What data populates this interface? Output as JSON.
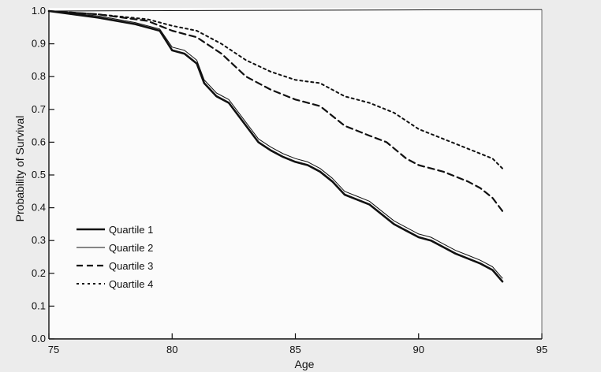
{
  "chart_data": {
    "type": "line",
    "xlabel": "Age",
    "ylabel": "Probability of Survival",
    "xlim": [
      75,
      95
    ],
    "ylim": [
      0.0,
      1.0
    ],
    "x_ticks": [
      "75",
      "80",
      "85",
      "90",
      "95"
    ],
    "y_ticks": [
      "0.0",
      "0.1",
      "0.2",
      "0.3",
      "0.4",
      "0.5",
      "0.6",
      "0.7",
      "0.8",
      "0.9",
      "1.0"
    ],
    "grid": false,
    "legend_position": "bottom-left",
    "series": [
      {
        "name": "Quartile 1",
        "style": "thick-solid",
        "x": [
          75,
          77,
          78.5,
          79.5,
          80,
          80.5,
          81,
          81.3,
          81.8,
          82.3,
          83,
          83.5,
          84,
          84.5,
          85,
          85.5,
          86,
          86.5,
          87,
          87.5,
          88,
          88.5,
          89,
          89.5,
          90,
          90.5,
          91,
          91.5,
          92,
          92.5,
          93,
          93.4
        ],
        "y": [
          1.0,
          0.98,
          0.96,
          0.94,
          0.88,
          0.87,
          0.84,
          0.78,
          0.74,
          0.72,
          0.65,
          0.6,
          0.575,
          0.555,
          0.54,
          0.53,
          0.51,
          0.48,
          0.44,
          0.425,
          0.41,
          0.38,
          0.35,
          0.33,
          0.31,
          0.3,
          0.28,
          0.26,
          0.245,
          0.23,
          0.21,
          0.175
        ]
      },
      {
        "name": "Quartile 2",
        "style": "thin-solid",
        "x": [
          75,
          77,
          78.5,
          79.5,
          80,
          80.5,
          81,
          81.3,
          81.8,
          82.3,
          83,
          83.5,
          84,
          84.5,
          85,
          85.5,
          86,
          86.5,
          87,
          87.5,
          88,
          88.5,
          89,
          89.5,
          90,
          90.5,
          91,
          91.5,
          92,
          92.5,
          93,
          93.4
        ],
        "y": [
          1.0,
          0.985,
          0.965,
          0.945,
          0.89,
          0.88,
          0.85,
          0.79,
          0.75,
          0.73,
          0.66,
          0.61,
          0.585,
          0.565,
          0.55,
          0.54,
          0.52,
          0.49,
          0.45,
          0.435,
          0.42,
          0.39,
          0.36,
          0.34,
          0.32,
          0.31,
          0.29,
          0.27,
          0.255,
          0.24,
          0.22,
          0.185
        ]
      },
      {
        "name": "Quartile 3",
        "style": "dashed",
        "x": [
          75,
          77,
          79,
          80,
          81,
          82,
          83,
          84,
          85,
          86,
          87,
          88,
          88.7,
          89.5,
          90,
          91,
          92,
          92.5,
          93,
          93.4
        ],
        "y": [
          1.0,
          0.99,
          0.97,
          0.94,
          0.92,
          0.87,
          0.8,
          0.76,
          0.73,
          0.71,
          0.65,
          0.62,
          0.6,
          0.55,
          0.53,
          0.51,
          0.48,
          0.46,
          0.43,
          0.39
        ]
      },
      {
        "name": "Quartile 4",
        "style": "dotted",
        "x": [
          75,
          77,
          79,
          80,
          81,
          82,
          83,
          84,
          85,
          86,
          87,
          88,
          89,
          90,
          91,
          92,
          93,
          93.4
        ],
        "y": [
          1.0,
          0.99,
          0.975,
          0.955,
          0.94,
          0.9,
          0.85,
          0.815,
          0.79,
          0.78,
          0.74,
          0.72,
          0.69,
          0.64,
          0.61,
          0.58,
          0.55,
          0.52
        ]
      }
    ]
  }
}
